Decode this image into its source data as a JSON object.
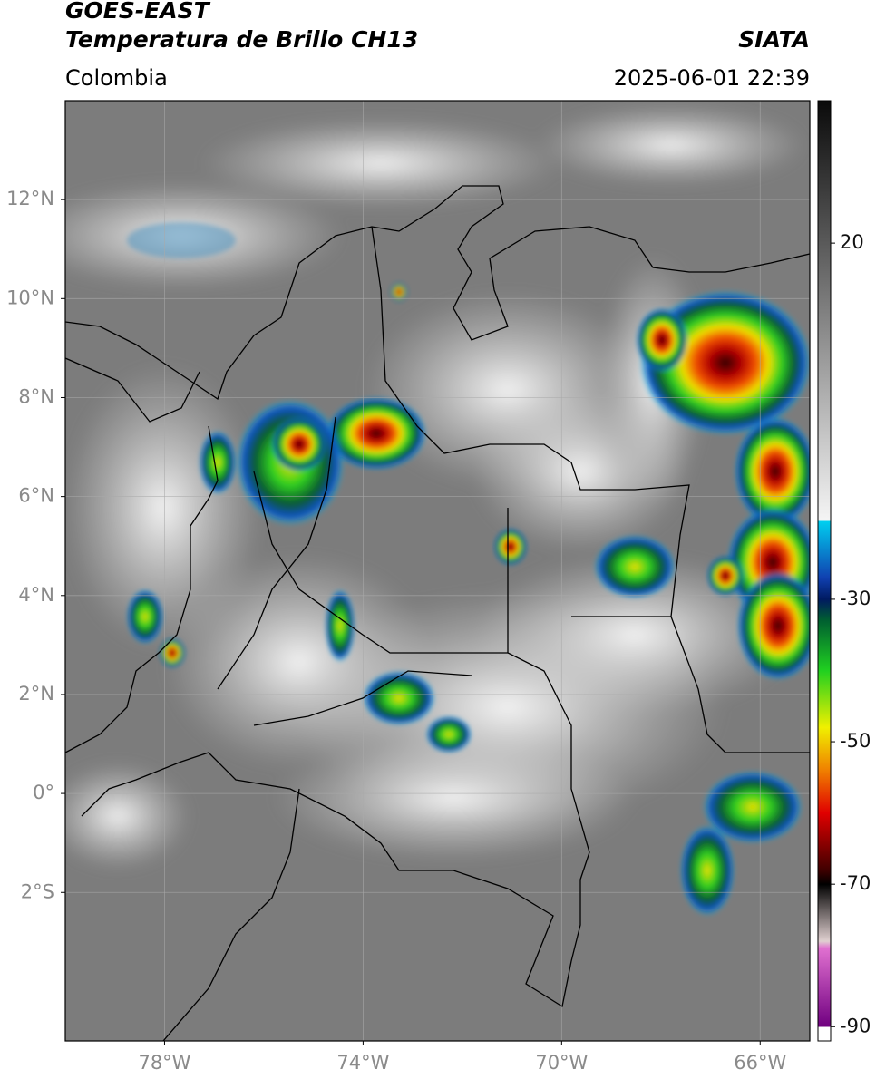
{
  "header": {
    "title_line1": "GOES-EAST",
    "title_line2": "Temperatura de Brillo CH13",
    "source": "SIATA",
    "region": "Colombia",
    "timestamp": "2025-06-01 22:39"
  },
  "map": {
    "lon_range": [
      -80,
      -65
    ],
    "lat_range": [
      -5,
      14
    ],
    "grid": true,
    "lon_ticks": [
      {
        "value": -78,
        "label": "78°W"
      },
      {
        "value": -74,
        "label": "74°W"
      },
      {
        "value": -70,
        "label": "70°W"
      },
      {
        "value": -66,
        "label": "66°W"
      }
    ],
    "lat_ticks": [
      {
        "value": 12,
        "label": "12°N"
      },
      {
        "value": 10,
        "label": "10°N"
      },
      {
        "value": 8,
        "label": "8°N"
      },
      {
        "value": 6,
        "label": "6°N"
      },
      {
        "value": 4,
        "label": "4°N"
      },
      {
        "value": 2,
        "label": "2°N"
      },
      {
        "value": 0,
        "label": "0°"
      },
      {
        "value": -2,
        "label": "2°S"
      }
    ]
  },
  "colorbar": {
    "range": [
      -92,
      40
    ],
    "ticks": [
      20,
      -30,
      -50,
      -70,
      -90
    ],
    "stops": [
      {
        "value": 40,
        "color": "#0a0a0a"
      },
      {
        "value": -19,
        "color": "#f5f5f5"
      },
      {
        "value": -19,
        "color": "#00d0f0"
      },
      {
        "value": -27,
        "color": "#1040b0"
      },
      {
        "value": -30,
        "color": "#001a60"
      },
      {
        "value": -33,
        "color": "#006030"
      },
      {
        "value": -40,
        "color": "#20d020"
      },
      {
        "value": -48,
        "color": "#f0f000"
      },
      {
        "value": -54,
        "color": "#f08000"
      },
      {
        "value": -60,
        "color": "#e00000"
      },
      {
        "value": -68,
        "color": "#400000"
      },
      {
        "value": -70,
        "color": "#000000"
      },
      {
        "value": -78,
        "color": "#e0d0d0"
      },
      {
        "value": -79,
        "color": "#e070d0"
      },
      {
        "value": -90,
        "color": "#700080"
      },
      {
        "value": -90,
        "color": "#ffffff"
      },
      {
        "value": -92,
        "color": "#ffffff"
      }
    ]
  }
}
